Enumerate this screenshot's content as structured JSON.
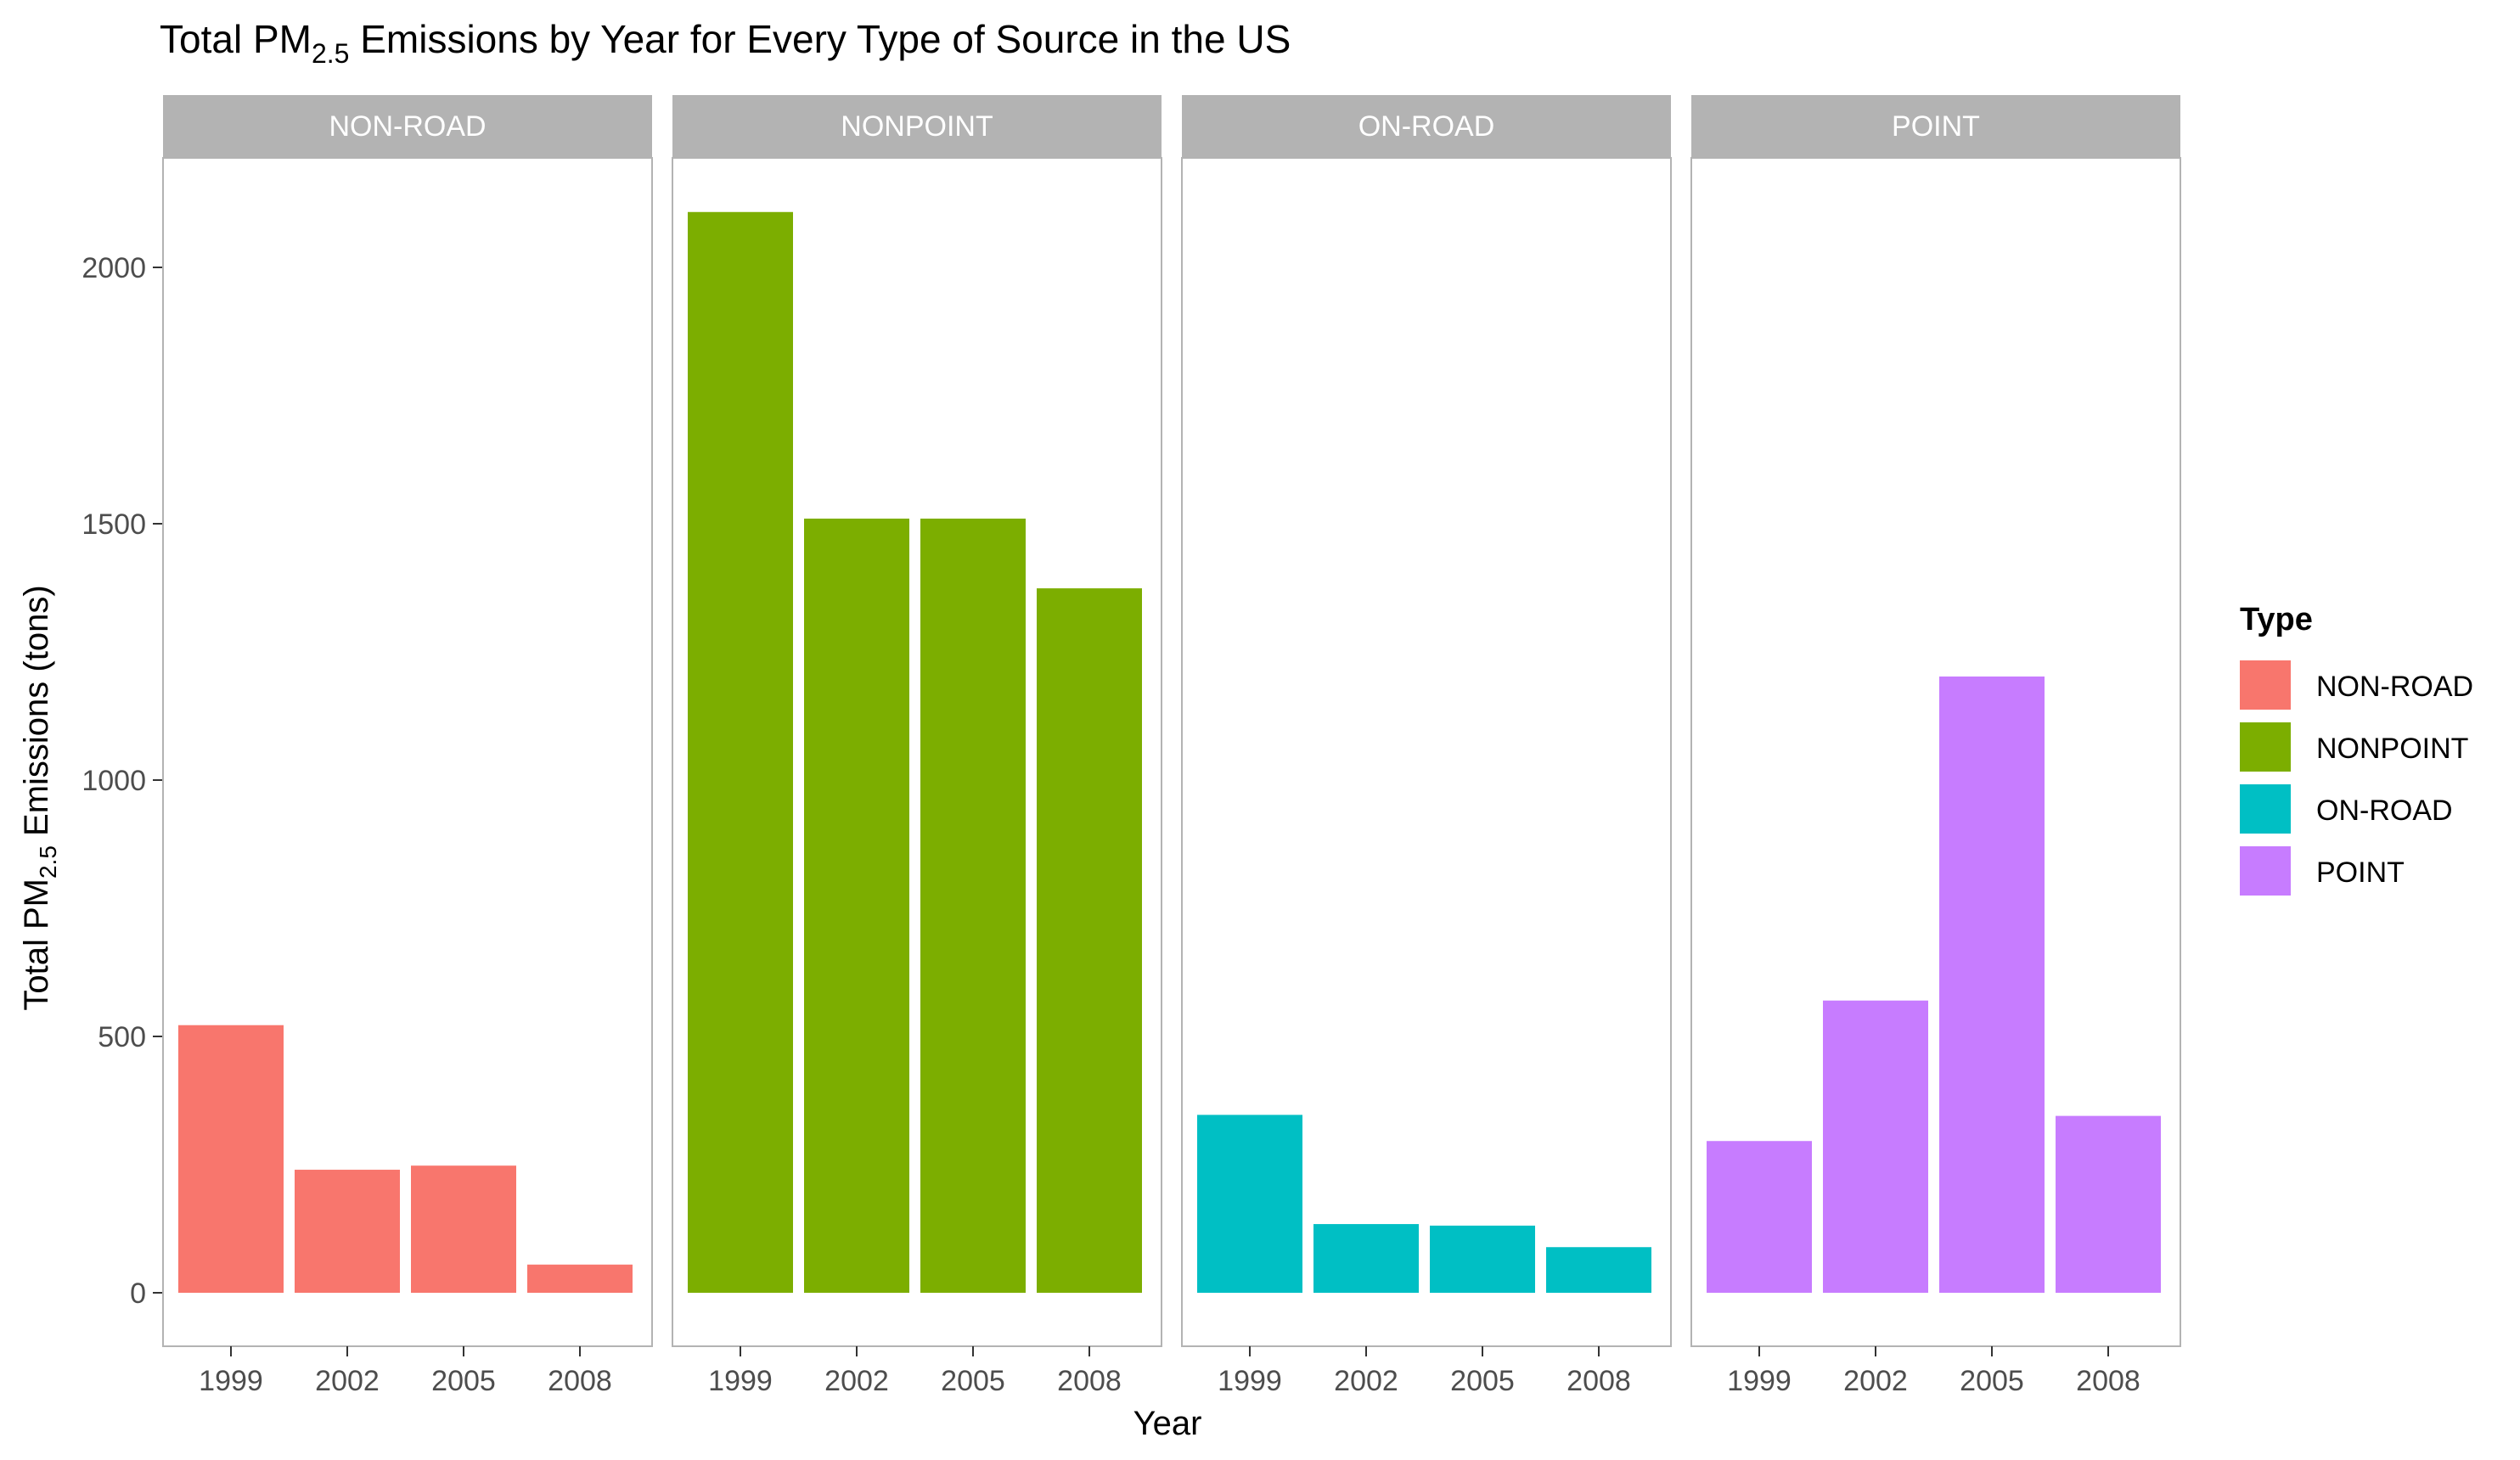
{
  "chart_data": {
    "type": "bar",
    "title": "Total PM",
    "title_sub": "2.5",
    "title_rest": " Emissions by Year for Every Type of Source in the US",
    "xlabel": "Year",
    "ylabel": "Total PM",
    "ylabel_sub": "2.5",
    "ylabel_rest": " Emissions (tons)",
    "categories": [
      "1999",
      "2002",
      "2005",
      "2008"
    ],
    "ylim": [
      0,
      2200
    ],
    "y_ticks": [
      0,
      500,
      1000,
      1500,
      2000
    ],
    "grid": false,
    "legend": {
      "title": "Type",
      "position": "right"
    },
    "series": [
      {
        "name": "NON-ROAD",
        "color": "#F8766D",
        "values": [
          522,
          240,
          248,
          55
        ]
      },
      {
        "name": "NONPOINT",
        "color": "#7CAE00",
        "values": [
          2108,
          1510,
          1510,
          1374
        ]
      },
      {
        "name": "ON-ROAD",
        "color": "#00BFC4",
        "values": [
          347,
          134,
          131,
          89
        ]
      },
      {
        "name": "POINT",
        "color": "#C77CFF",
        "values": [
          296,
          570,
          1202,
          345
        ]
      }
    ]
  }
}
